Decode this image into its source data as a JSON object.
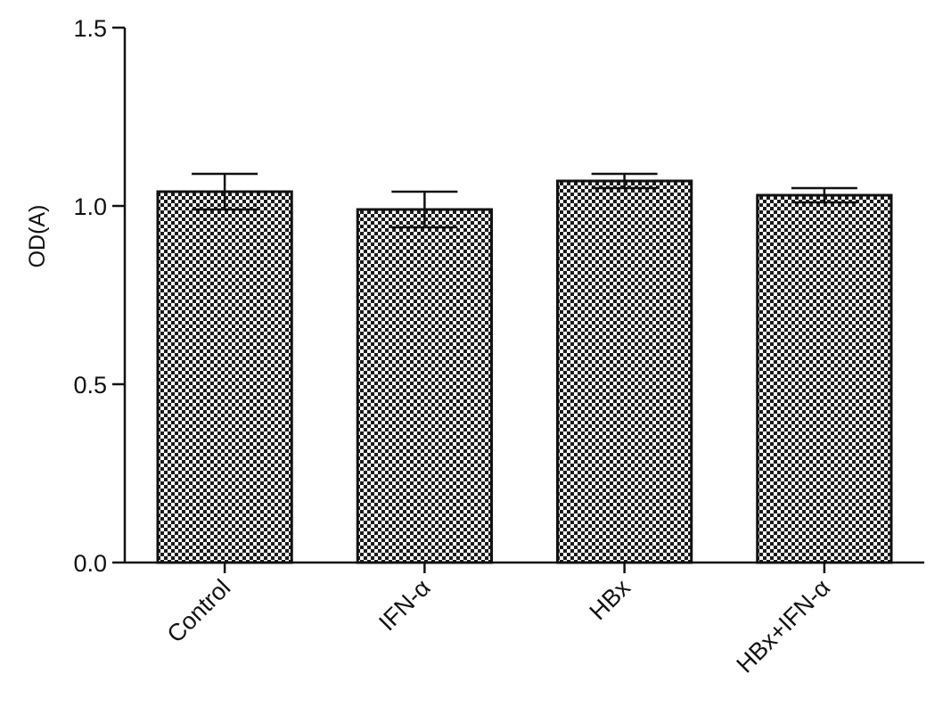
{
  "chart_data": {
    "type": "bar",
    "title": "",
    "xlabel": "",
    "ylabel": "OD(A)",
    "ylim": [
      0,
      1.5
    ],
    "yticks": [
      "0.0",
      "0.5",
      "1.0",
      "1.5"
    ],
    "categories": [
      "Control",
      "IFN-α",
      "HBx",
      "HBx+IFN-α"
    ],
    "values": [
      1.04,
      0.99,
      1.07,
      1.03
    ],
    "errors": [
      0.05,
      0.05,
      0.02,
      0.02
    ],
    "bar_fill": "checkerboard",
    "bar_colors": {
      "dark": "#1a1a1a",
      "light": "#ffffff"
    },
    "axis_color": "#111111",
    "grid": false,
    "legend": "none"
  }
}
